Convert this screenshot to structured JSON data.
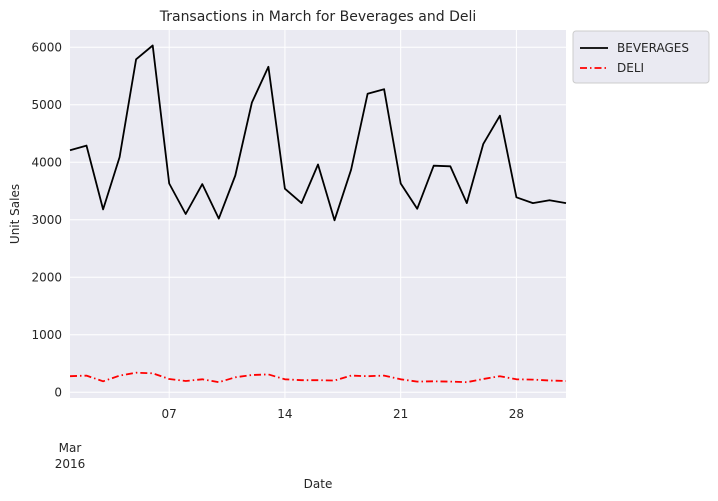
{
  "chart_data": {
    "type": "line",
    "title": "Transactions in March for Beverages and Deli",
    "xlabel": "Date",
    "ylabel": "Unit Sales",
    "x": [
      "2016-03-01",
      "2016-03-02",
      "2016-03-03",
      "2016-03-04",
      "2016-03-05",
      "2016-03-06",
      "2016-03-07",
      "2016-03-08",
      "2016-03-09",
      "2016-03-10",
      "2016-03-11",
      "2016-03-12",
      "2016-03-13",
      "2016-03-14",
      "2016-03-15",
      "2016-03-16",
      "2016-03-17",
      "2016-03-18",
      "2016-03-19",
      "2016-03-20",
      "2016-03-21",
      "2016-03-22",
      "2016-03-23",
      "2016-03-24",
      "2016-03-25",
      "2016-03-26",
      "2016-03-27",
      "2016-03-28",
      "2016-03-29",
      "2016-03-30",
      "2016-03-31"
    ],
    "series": [
      {
        "name": "BEVERAGES",
        "color": "#000000",
        "style": "solid",
        "values": [
          4210,
          4290,
          3180,
          4090,
          5790,
          6030,
          3630,
          3100,
          3620,
          3020,
          3770,
          5040,
          5660,
          3540,
          3290,
          3960,
          2990,
          3870,
          5190,
          5270,
          3630,
          3190,
          3940,
          3930,
          3290,
          4320,
          4810,
          3390,
          3290,
          3340,
          3290
        ]
      },
      {
        "name": "DELI",
        "color": "#ff0000",
        "style": "dashdot",
        "values": [
          280,
          290,
          190,
          290,
          340,
          330,
          230,
          195,
          225,
          175,
          260,
          300,
          310,
          225,
          210,
          210,
          205,
          290,
          280,
          290,
          225,
          185,
          190,
          185,
          175,
          230,
          280,
          225,
          220,
          205,
          195
        ]
      }
    ],
    "ylim": [
      -100,
      6300
    ],
    "y_ticks": [
      0,
      1000,
      2000,
      3000,
      4000,
      5000,
      6000
    ],
    "x_ticks": [
      {
        "date": "2016-03-07",
        "label": "07"
      },
      {
        "date": "2016-03-14",
        "label": "14"
      },
      {
        "date": "2016-03-21",
        "label": "21"
      },
      {
        "date": "2016-03-28",
        "label": "28"
      }
    ],
    "x_minor_label": {
      "month": "Mar",
      "year": "2016"
    },
    "grid": true,
    "legend_position": "outside-top-right",
    "background": "#eaeaf2"
  }
}
